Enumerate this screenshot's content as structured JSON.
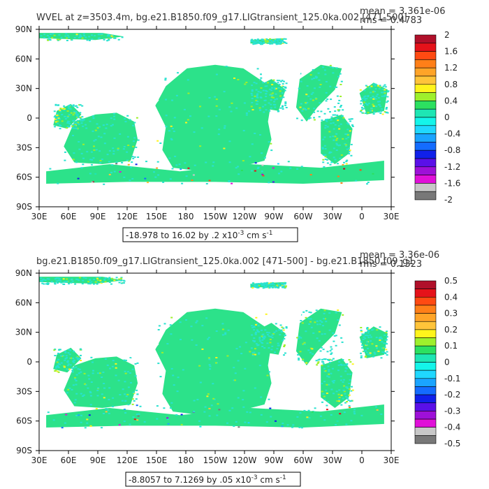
{
  "chart_data": [
    {
      "type": "heatmap",
      "title": "WVEL at z=3503.4m, bg.e21.B1850.f09_g17.LIGtransient_125.0ka.002 [471-500]",
      "stat_mean": "mean = 3.361e-06",
      "stat_rms": "rms = 0.4783",
      "xticks": [
        "30E",
        "60E",
        "90E",
        "120E",
        "150E",
        "180",
        "150W",
        "120W",
        "90W",
        "60W",
        "30W",
        "0",
        "30E"
      ],
      "yticks": [
        "90N",
        "60N",
        "30N",
        "0",
        "30S",
        "60S",
        "90S"
      ],
      "colorbar_labels": [
        "2",
        "1.6",
        "1.2",
        "0.8",
        "0.4",
        "0",
        "-0.4",
        "-0.8",
        "-1.2",
        "-1.6",
        "-2"
      ],
      "range_prefix": "-18.978 to 16.02 by .2 x10",
      "range_exp": "-3",
      "range_units": " cm s",
      "range_units_exp": "-1"
    },
    {
      "type": "heatmap",
      "title": "bg.e21.B1850.f09_g17.LIGtransient_125.0ka.002 [471-500] - bg.e21.B1850.f09_g1",
      "stat_mean": "mean = 3.36e-06",
      "stat_rms": "rms = 0.1323",
      "xticks": [
        "30E",
        "60E",
        "90E",
        "120E",
        "150E",
        "180",
        "150W",
        "120W",
        "90W",
        "60W",
        "30W",
        "0",
        "30E"
      ],
      "yticks": [
        "90N",
        "60N",
        "30N",
        "0",
        "30S",
        "60S",
        "90S"
      ],
      "colorbar_labels": [
        "0.5",
        "0.4",
        "0.3",
        "0.2",
        "0.1",
        "0",
        "-0.1",
        "-0.2",
        "-0.3",
        "-0.4",
        "-0.5"
      ],
      "range_prefix": "-8.8057 to 7.1269 by .05 x10",
      "range_exp": "-3",
      "range_units": " cm s",
      "range_units_exp": "-1"
    }
  ],
  "colors": {
    "colorbar": [
      "#b0102a",
      "#e5121a",
      "#ff4a12",
      "#ff7f18",
      "#ffa428",
      "#ffc43a",
      "#fff41c",
      "#9ef02c",
      "#2ce060",
      "#1ee6b4",
      "#14f5ea",
      "#20d8ff",
      "#1aa4ff",
      "#146cff",
      "#1020ea",
      "#5a10e8",
      "#9e10d8",
      "#e010d8",
      "#c8c8c8",
      "#787878"
    ],
    "ocean_main": "#2ce28a",
    "ocean_alt": "#28e2d0",
    "land": "#ffffff"
  }
}
